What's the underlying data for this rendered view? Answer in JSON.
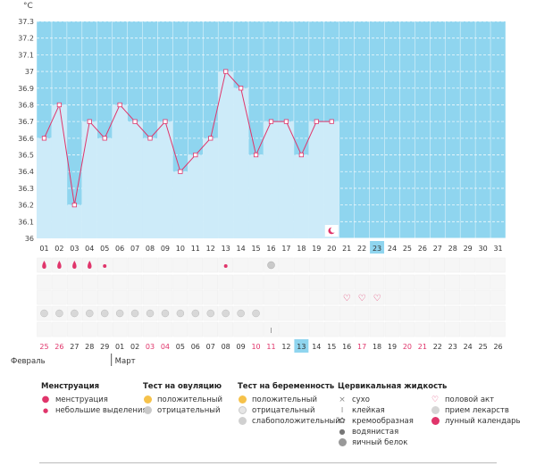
{
  "chart_data": {
    "type": "line",
    "ylabel": "°C",
    "ylim": [
      36,
      37.3
    ],
    "yticks": [
      "37.3",
      "37.2",
      "37.1",
      "37",
      "36.9",
      "36.8",
      "36.7",
      "36.6",
      "36.5",
      "36.4",
      "36.3",
      "36.2",
      "36.1",
      "36"
    ],
    "cycle_days": [
      "01",
      "02",
      "03",
      "04",
      "05",
      "06",
      "07",
      "08",
      "09",
      "10",
      "11",
      "12",
      "13",
      "14",
      "15",
      "16",
      "17",
      "18",
      "19",
      "20",
      "21",
      "22",
      "23",
      "24",
      "25",
      "26",
      "27",
      "28",
      "29",
      "30",
      "31"
    ],
    "highlight_cycle_day": "23",
    "temperatures": [
      36.6,
      36.8,
      36.2,
      36.7,
      36.6,
      36.8,
      36.7,
      36.6,
      36.7,
      36.4,
      36.5,
      36.6,
      37.0,
      36.9,
      36.5,
      36.7,
      36.7,
      36.5,
      36.7,
      36.7
    ],
    "calendar_dates": [
      "25",
      "26",
      "27",
      "28",
      "29",
      "01",
      "02",
      "03",
      "04",
      "05",
      "06",
      "07",
      "08",
      "09",
      "10",
      "11",
      "12",
      "13",
      "14",
      "15",
      "16",
      "17",
      "18",
      "19",
      "20",
      "21",
      "22",
      "23",
      "24",
      "25",
      "26"
    ],
    "red_dates_index": [
      0,
      1,
      7,
      8,
      14,
      15,
      21,
      24,
      25
    ],
    "highlight_date_index": 17,
    "months": [
      {
        "label": "Февраль"
      },
      {
        "label": "Март"
      }
    ],
    "menstruation_days": [
      1,
      2,
      3,
      4
    ],
    "spotting_days": [
      5,
      13
    ],
    "ovulation_negative_days": [
      16
    ],
    "intercourse_days": [
      21,
      22,
      23
    ],
    "medication_days": [
      1,
      2,
      3,
      4,
      5,
      6,
      7,
      8,
      9,
      10,
      11,
      12,
      13,
      14,
      15
    ],
    "sticky_fluid_days": [
      16
    ],
    "colors": {
      "sky": "#8fd5ef",
      "bar": "#cdebf9",
      "line": "#e0356b",
      "red": "#e0356b",
      "highlight": "#8fd5ef"
    }
  },
  "legend": {
    "menstruation": {
      "title": "Менструация",
      "items": [
        "менструация",
        "небольшие выделения"
      ]
    },
    "ovulation": {
      "title": "Тест на овуляцию",
      "items": [
        "положительный",
        "отрицательный"
      ]
    },
    "pregnancy": {
      "title": "Тест на беременность",
      "items": [
        "положительный",
        "отрицательный",
        "слабоположительный"
      ]
    },
    "fluid": {
      "title": "Цервикальная жидкость",
      "items": [
        "сухо",
        "клейкая",
        "кремообразная",
        "водянистая",
        "яичный белок"
      ]
    },
    "other": {
      "items": [
        "половой акт",
        "прием лекарств",
        "лунный календарь"
      ]
    }
  }
}
